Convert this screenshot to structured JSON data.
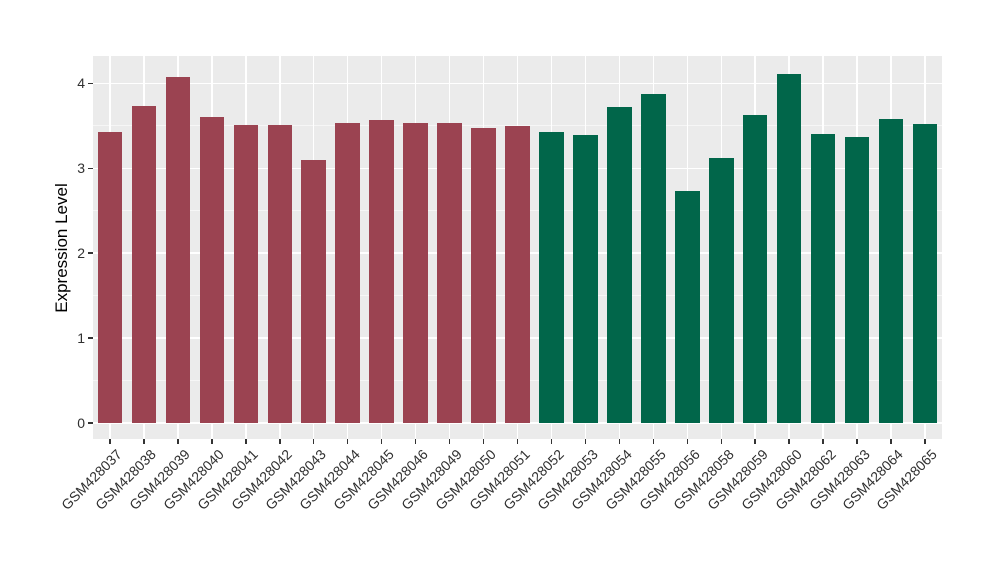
{
  "chart_data": {
    "type": "bar",
    "ylabel": "Expression Level",
    "categories": [
      "GSM428037",
      "GSM428038",
      "GSM428039",
      "GSM428040",
      "GSM428041",
      "GSM428042",
      "GSM428043",
      "GSM428044",
      "GSM428045",
      "GSM428046",
      "GSM428049",
      "GSM428050",
      "GSM428051",
      "GSM428052",
      "GSM428053",
      "GSM428054",
      "GSM428055",
      "GSM428056",
      "GSM428058",
      "GSM428059",
      "GSM428060",
      "GSM428062",
      "GSM428063",
      "GSM428064",
      "GSM428065"
    ],
    "values": [
      3.43,
      3.73,
      4.08,
      3.6,
      3.51,
      3.51,
      3.1,
      3.53,
      3.57,
      3.53,
      3.53,
      3.47,
      3.5,
      3.43,
      3.39,
      3.72,
      3.87,
      2.73,
      3.12,
      3.63,
      4.11,
      3.4,
      3.37,
      3.58,
      3.52
    ],
    "groups": [
      0,
      0,
      0,
      0,
      0,
      0,
      0,
      0,
      0,
      0,
      0,
      0,
      0,
      1,
      1,
      1,
      1,
      1,
      1,
      1,
      1,
      1,
      1,
      1,
      1
    ],
    "group_colors": [
      "#9B4351",
      "#01664A"
    ],
    "yticks": [
      0,
      1,
      2,
      3,
      4
    ],
    "yticks_minor": [
      0.5,
      1.5,
      2.5,
      3.5
    ],
    "ylim": [
      0,
      4.33
    ],
    "grid": true,
    "legend": "none",
    "panel_bg": "#EBEBEB",
    "grid_major_color": "#FFFFFF",
    "grid_minor_color": "rgba(255,255,255,0.55)",
    "axis_text_color": "#303030",
    "tick_color": "#333333",
    "figure_bg": "#FFFFFF"
  }
}
